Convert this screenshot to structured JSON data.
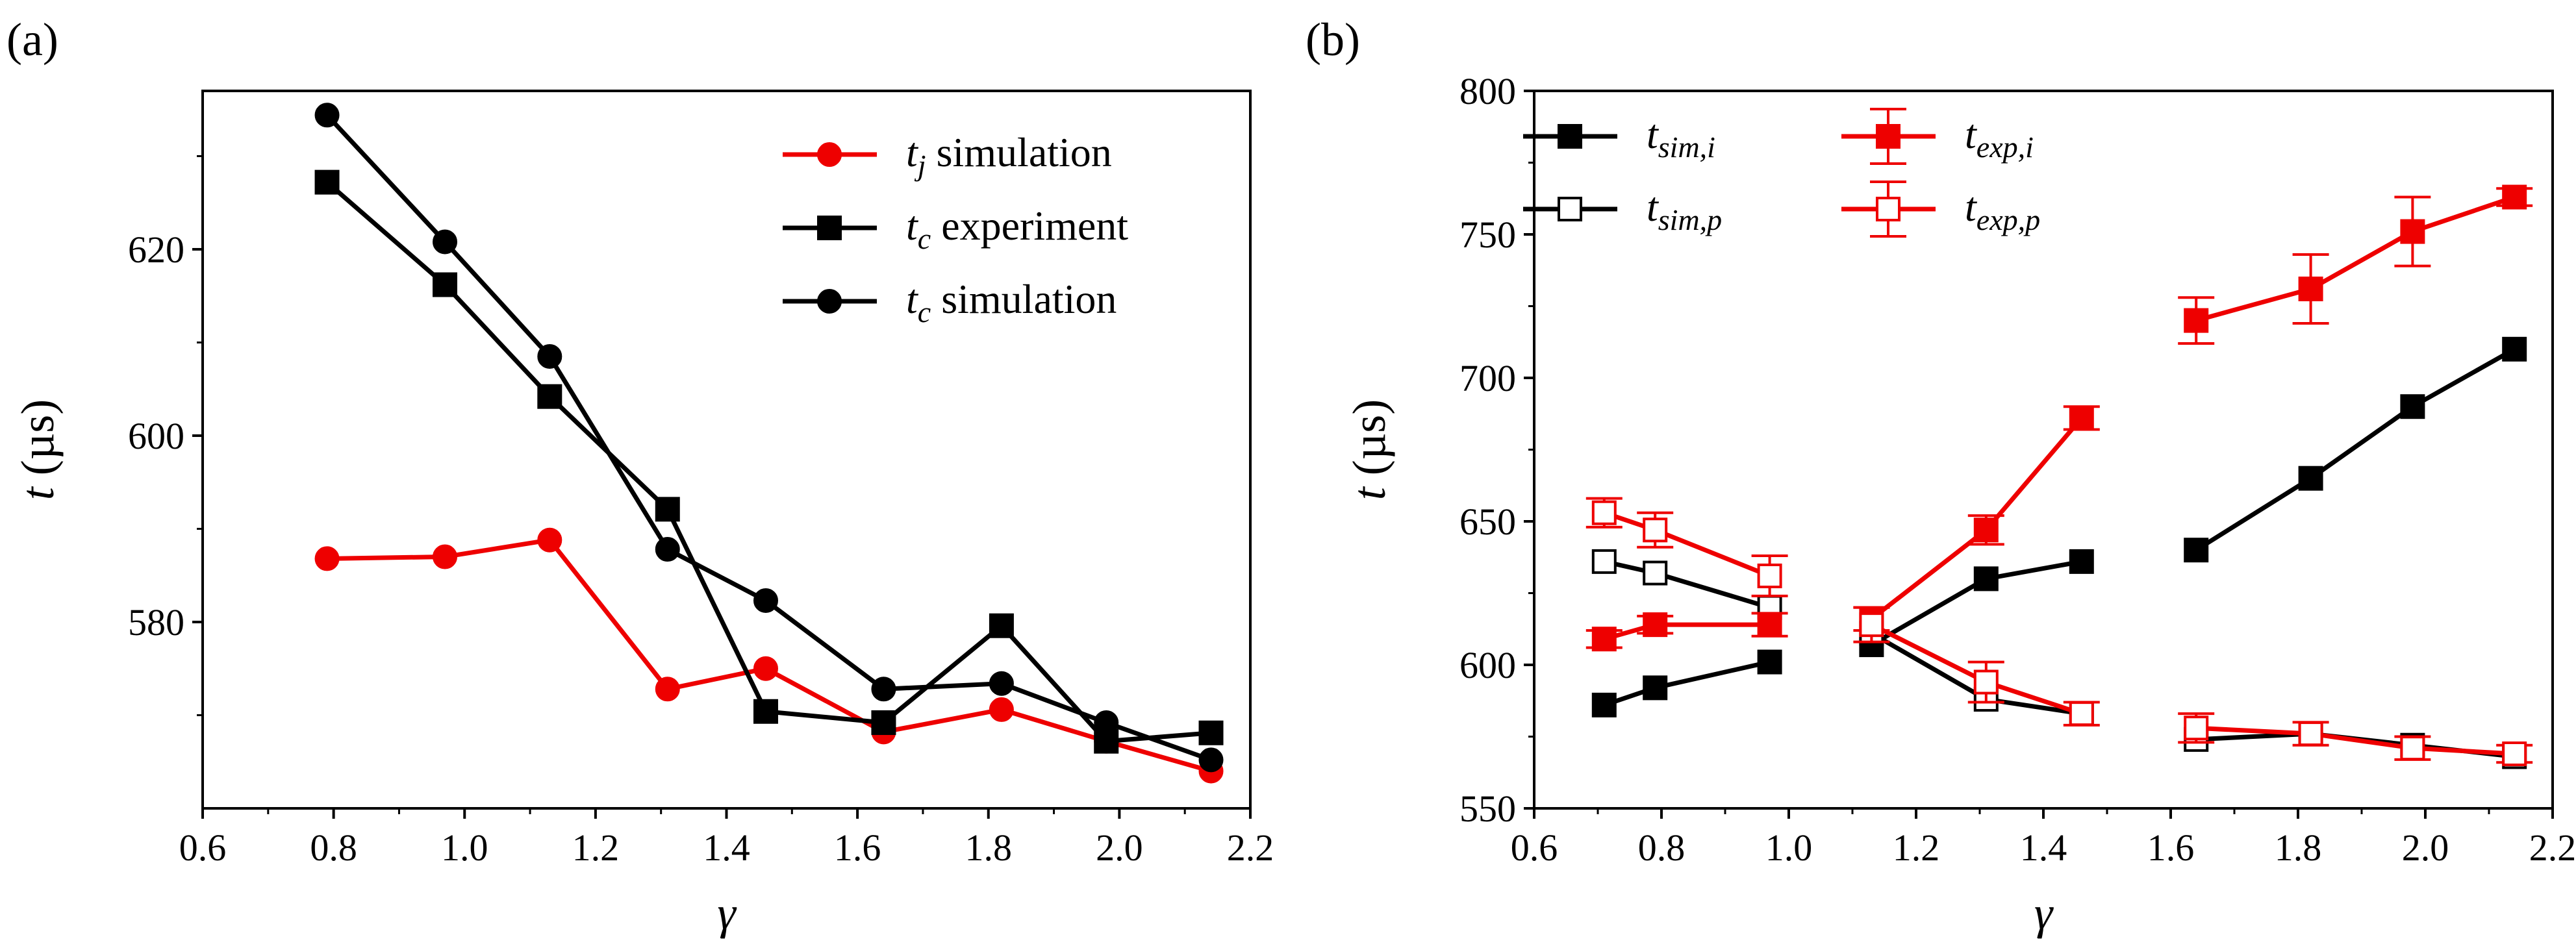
{
  "colors": {
    "red": "#ee0000",
    "black": "#000000"
  },
  "chart_data": [
    {
      "type": "line",
      "panel_label": "(a)",
      "xlabel": "γ",
      "ylabel": "t (µs)",
      "xlim": [
        0.6,
        2.2
      ],
      "ylim": [
        560,
        637
      ],
      "xticks": [
        0.6,
        0.8,
        1.0,
        1.2,
        1.4,
        1.6,
        1.8,
        2.0,
        2.2
      ],
      "xtick_labels": [
        "0.6",
        "0.8",
        "1.0",
        "1.2",
        "1.4",
        "1.6",
        "1.8",
        "2.0",
        "2.2"
      ],
      "yticks": [
        580,
        600,
        620
      ],
      "ytick_labels": [
        "580",
        "600",
        "620"
      ],
      "legend_position": "top-right",
      "series": [
        {
          "name": "t_j simulation",
          "legend_main": "t",
          "legend_sub": "j",
          "legend_rest": " simulation",
          "color": "red",
          "marker": "circle",
          "filled": true,
          "x": [
            0.79,
            0.97,
            1.13,
            1.31,
            1.46,
            1.64,
            1.82,
            1.98,
            2.14
          ],
          "y": [
            586.8,
            587.0,
            588.8,
            572.8,
            575.0,
            568.2,
            570.6,
            567.2,
            564.0
          ]
        },
        {
          "name": "t_c experiment",
          "legend_main": "t",
          "legend_sub": "c",
          "legend_rest": " experiment",
          "color": "black",
          "marker": "square",
          "filled": true,
          "x": [
            0.79,
            0.97,
            1.13,
            1.31,
            1.46,
            1.64,
            1.82,
            1.98,
            2.14
          ],
          "y": [
            627.2,
            616.2,
            604.2,
            592.1,
            570.4,
            569.2,
            579.6,
            567.2,
            568.1
          ]
        },
        {
          "name": "t_c simulation",
          "legend_main": "t",
          "legend_sub": "c",
          "legend_rest": " simulation",
          "color": "black",
          "marker": "circle",
          "filled": true,
          "x": [
            0.79,
            0.97,
            1.13,
            1.31,
            1.46,
            1.64,
            1.82,
            1.98,
            2.14
          ],
          "y": [
            634.4,
            620.8,
            608.5,
            587.8,
            582.3,
            572.8,
            573.4,
            569.2,
            565.2
          ]
        }
      ]
    },
    {
      "type": "line",
      "panel_label": "(b)",
      "xlabel": "γ",
      "ylabel": "t (µs)",
      "xlim": [
        0.6,
        2.2
      ],
      "ylim": [
        550,
        800
      ],
      "xticks": [
        0.6,
        0.8,
        1.0,
        1.2,
        1.4,
        1.6,
        1.8,
        2.0,
        2.2
      ],
      "xtick_labels": [
        "0.6",
        "0.8",
        "1.0",
        "1.2",
        "1.4",
        "1.6",
        "1.8",
        "2.0",
        "2.2"
      ],
      "yticks": [
        550,
        600,
        650,
        700,
        750,
        800
      ],
      "ytick_labels": [
        "550",
        "600",
        "650",
        "700",
        "750",
        "800"
      ],
      "legend_position": "top-left",
      "series": [
        {
          "name": "t_sim,i",
          "legend_main": "t",
          "legend_sub": "sim,i",
          "color": "black",
          "marker": "square",
          "filled": true,
          "segments": [
            {
              "x": [
                0.71,
                0.79,
                0.97
              ],
              "y": [
                586,
                592,
                601
              ]
            },
            {
              "x": [
                1.13,
                1.31,
                1.46
              ],
              "y": [
                607,
                630,
                636
              ]
            },
            {
              "x": [
                1.64,
                1.82,
                1.98,
                2.14
              ],
              "y": [
                640,
                665,
                690,
                710
              ]
            }
          ]
        },
        {
          "name": "t_sim,p",
          "legend_main": "t",
          "legend_sub": "sim,p",
          "color": "black",
          "marker": "square",
          "filled": false,
          "segments": [
            {
              "x": [
                0.71,
                0.79,
                0.97
              ],
              "y": [
                636,
                632,
                620
              ]
            },
            {
              "x": [
                1.13,
                1.31,
                1.46
              ],
              "y": [
                611,
                588,
                583
              ]
            },
            {
              "x": [
                1.64,
                1.82,
                1.98,
                2.14
              ],
              "y": [
                574,
                576,
                572,
                568
              ]
            }
          ]
        },
        {
          "name": "t_exp,i",
          "legend_main": "t",
          "legend_sub": "exp,i",
          "color": "red",
          "marker": "square",
          "filled": true,
          "segments": [
            {
              "x": [
                0.71,
                0.79,
                0.97
              ],
              "y": [
                609,
                614,
                614
              ],
              "err": [
                3,
                3,
                4
              ]
            },
            {
              "x": [
                1.13,
                1.31,
                1.46
              ],
              "y": [
                616,
                647,
                686
              ],
              "err": [
                4,
                5,
                4
              ]
            },
            {
              "x": [
                1.64,
                1.82,
                1.98,
                2.14
              ],
              "y": [
                720,
                731,
                751,
                763
              ],
              "err": [
                8,
                12,
                12,
                3
              ]
            }
          ]
        },
        {
          "name": "t_exp,p",
          "legend_main": "t",
          "legend_sub": "exp,p",
          "color": "red",
          "marker": "square",
          "filled": false,
          "segments": [
            {
              "x": [
                0.71,
                0.79,
                0.97
              ],
              "y": [
                653,
                647,
                631
              ],
              "err": [
                5,
                6,
                7
              ]
            },
            {
              "x": [
                1.13,
                1.31,
                1.46
              ],
              "y": [
                614,
                594,
                583
              ],
              "err": [
                6,
                7,
                4
              ]
            },
            {
              "x": [
                1.64,
                1.82,
                1.98,
                2.14
              ],
              "y": [
                578,
                576,
                571,
                569
              ],
              "err": [
                5,
                4,
                4,
                3
              ]
            }
          ]
        }
      ]
    }
  ]
}
